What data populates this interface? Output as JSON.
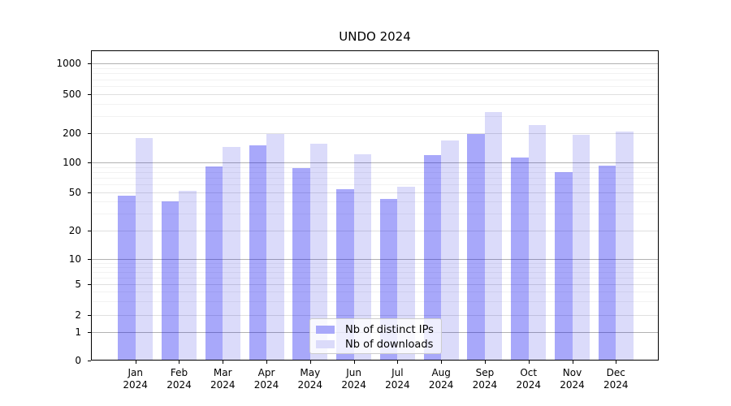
{
  "chart_data": {
    "type": "bar",
    "title": "UNDO 2024",
    "categories": [
      "Jan",
      "Feb",
      "Mar",
      "Apr",
      "May",
      "Jun",
      "Jul",
      "Aug",
      "Sep",
      "Oct",
      "Nov",
      "Dec"
    ],
    "category_year": "2024",
    "series": [
      {
        "name": "Nb of distinct IPs",
        "color": "#a9a9fa",
        "fill": "rgba(0,0,240,0.34)",
        "values": [
          46,
          40,
          91,
          150,
          88,
          54,
          43,
          119,
          197,
          112,
          79,
          92
        ]
      },
      {
        "name": "Nb of downloads",
        "color": "#dbdbfa",
        "fill": "rgba(0,0,220,0.14)",
        "values": [
          178,
          52,
          145,
          198,
          155,
          121,
          57,
          167,
          327,
          244,
          194,
          206
        ]
      }
    ],
    "y_ticks": [
      0,
      1,
      2,
      5,
      10,
      20,
      50,
      100,
      200,
      500,
      1000
    ],
    "y_scale": "symlog",
    "ylim": [
      0,
      1400
    ],
    "xlabel": "",
    "ylabel": "",
    "grid": true,
    "legend_position": "lower center"
  }
}
